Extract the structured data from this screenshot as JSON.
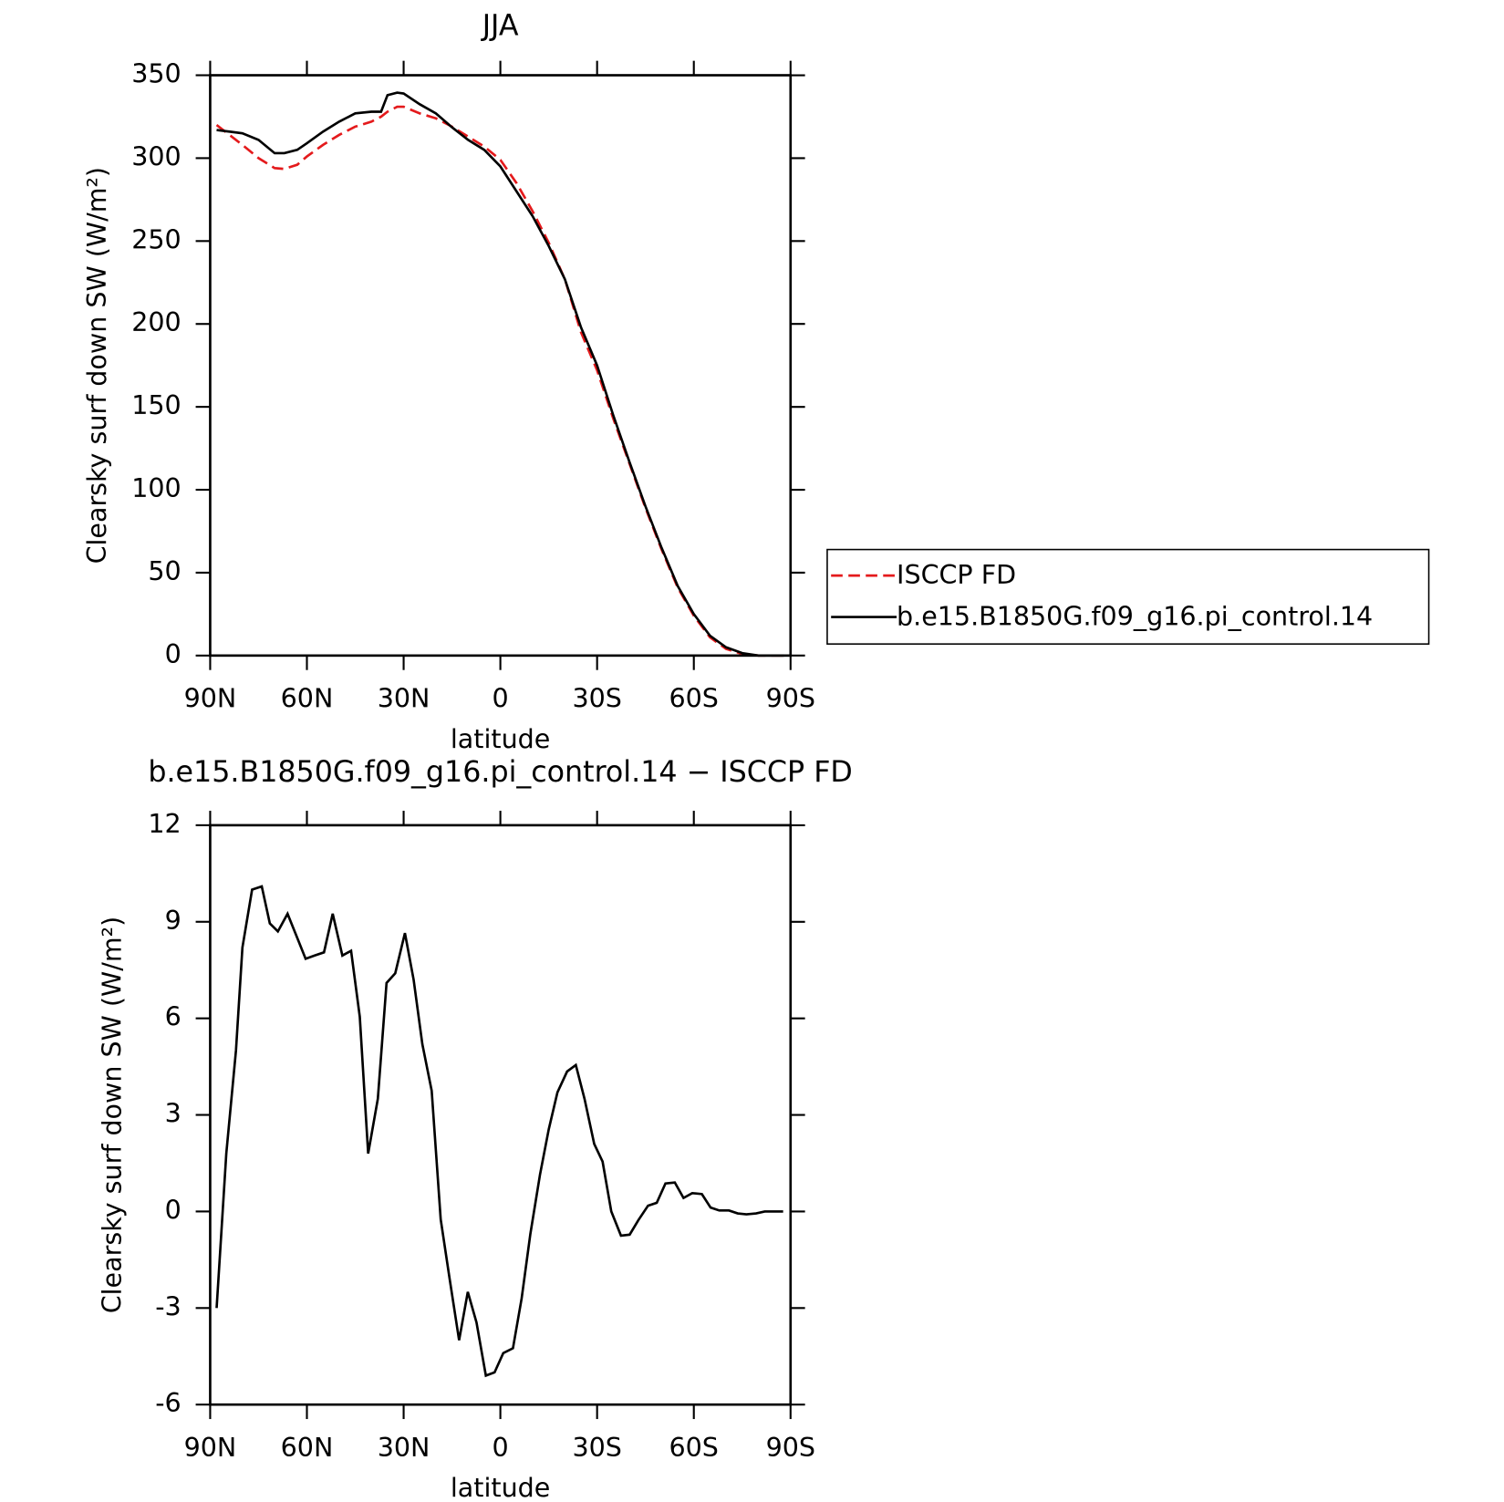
{
  "chart_data": [
    {
      "type": "line",
      "title": "JJA",
      "x_label": "latitude",
      "y_label": "Clearsky surf down SW (W/m²)",
      "x": [
        88,
        80,
        75,
        70,
        67,
        63,
        60,
        55,
        50,
        45,
        40,
        37,
        35,
        32,
        30,
        25,
        20,
        15,
        10,
        5,
        0,
        -5,
        -10,
        -15,
        -20,
        -25,
        -30,
        -35,
        -40,
        -45,
        -50,
        -55,
        -60,
        -65,
        -70,
        -75,
        -80,
        -85,
        -88
      ],
      "series": [
        {
          "name": "ISCCP FD",
          "color": "#e41a1c",
          "dashed": true,
          "values": [
            320,
            308,
            300,
            294,
            293.5,
            296,
            301,
            308,
            314,
            319,
            322,
            325,
            328,
            331,
            331,
            327,
            324,
            319,
            313,
            307,
            299,
            285,
            268,
            249,
            227,
            195,
            172,
            143,
            116,
            89,
            64,
            41,
            24,
            11,
            4,
            1,
            0,
            0,
            0
          ]
        },
        {
          "name": "b.e15.B1850G.f09_g16.pi_control.14",
          "color": "#000000",
          "dashed": false,
          "values": [
            317,
            315,
            311,
            303,
            303,
            305,
            309,
            316,
            322,
            327,
            328,
            328,
            338,
            339.5,
            339,
            332.5,
            327,
            318.6,
            311,
            305,
            295,
            280,
            265,
            247,
            227,
            198,
            175,
            145,
            117,
            90,
            65,
            42,
            25,
            12,
            5,
            1.5,
            0,
            0,
            0
          ]
        }
      ],
      "xlim": [
        90,
        -90
      ],
      "xticks": [
        {
          "value": 90,
          "label": "90N"
        },
        {
          "value": 60,
          "label": "60N"
        },
        {
          "value": 30,
          "label": "30N"
        },
        0,
        {
          "value": -30,
          "label": "30S"
        },
        {
          "value": -60,
          "label": "60S"
        },
        {
          "value": -90,
          "label": "90S"
        }
      ],
      "ylim": [
        0,
        350
      ],
      "yticks": [
        0,
        50,
        100,
        150,
        200,
        250,
        300,
        350
      ],
      "legend": "outside-right"
    },
    {
      "type": "line",
      "title": "b.e15.B1850G.f09_g16.pi_control.14 − ISCCP FD",
      "x_label": "latitude",
      "y_label": "Clearsky surf down SW (W/m²)",
      "x": [
        88,
        85,
        82,
        80,
        77,
        74,
        71.5,
        69,
        66,
        63,
        60.4,
        57.7,
        54.7,
        52,
        49,
        46.3,
        43.6,
        41,
        38,
        35.3,
        32.6,
        29.6,
        26.9,
        24.2,
        21.3,
        18.5,
        15.8,
        12.8,
        10.1,
        7.4,
        4.5,
        1.8,
        -0.9,
        -3.9,
        -6.6,
        -9.3,
        -12.3,
        -15,
        -17.7,
        -20.7,
        -23.4,
        -26.1,
        -29.1,
        -31.7,
        -34.4,
        -37.4,
        -40.1,
        -42.8,
        -45.8,
        -48.5,
        -51.2,
        -54.1,
        -56.8,
        -59.5,
        -62.5,
        -65.2,
        -67.9,
        -70.9,
        -73.6,
        -76.3,
        -79.3,
        -82,
        -84.7,
        -87.7
      ],
      "color": "#000000",
      "values": [
        -3.0,
        1.8,
        5,
        8.2,
        10.0,
        10.1,
        8.95,
        8.7,
        9.25,
        8.5,
        7.85,
        7.95,
        8.05,
        9.25,
        7.95,
        8.1,
        6.05,
        1.8,
        3.5,
        7.1,
        7.4,
        8.65,
        7.2,
        5.2,
        3.75,
        -0.25,
        -2.05,
        -4.0,
        -2.5,
        -3.45,
        -5.1,
        -5.0,
        -4.4,
        -4.25,
        -2.7,
        -0.7,
        1.15,
        2.55,
        3.7,
        4.35,
        4.55,
        3.5,
        2.1,
        1.55,
        0,
        -0.75,
        -0.72,
        -0.27,
        0.18,
        0.27,
        0.87,
        0.9,
        0.42,
        0.57,
        0.54,
        0.12,
        0.03,
        0.03,
        -0.06,
        -0.09,
        -0.06,
        0,
        0,
        0
      ],
      "xlim": [
        90,
        -90
      ],
      "xticks": [
        {
          "value": 90,
          "label": "90N"
        },
        {
          "value": 60,
          "label": "60N"
        },
        {
          "value": 30,
          "label": "30N"
        },
        0,
        {
          "value": -30,
          "label": "30S"
        },
        {
          "value": -60,
          "label": "60S"
        },
        {
          "value": -90,
          "label": "90S"
        }
      ],
      "ylim": [
        -6,
        12
      ],
      "yticks": [
        -6,
        -3,
        0,
        3,
        6,
        9,
        12
      ]
    }
  ]
}
